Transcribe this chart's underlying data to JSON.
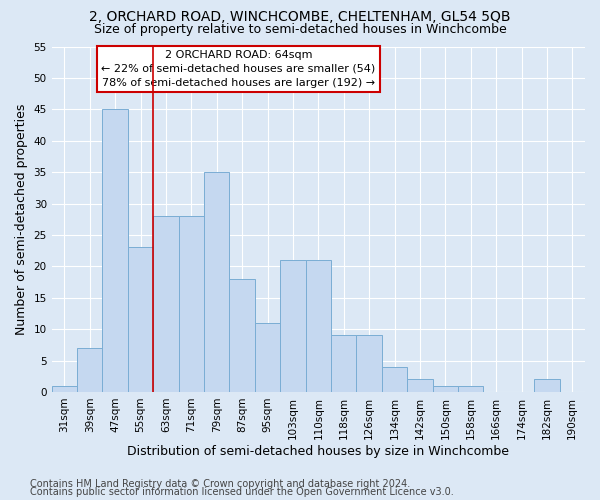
{
  "title": "2, ORCHARD ROAD, WINCHCOMBE, CHELTENHAM, GL54 5QB",
  "subtitle": "Size of property relative to semi-detached houses in Winchcombe",
  "xlabel": "Distribution of semi-detached houses by size in Winchcombe",
  "ylabel": "Number of semi-detached properties",
  "footnote1": "Contains HM Land Registry data © Crown copyright and database right 2024.",
  "footnote2": "Contains public sector information licensed under the Open Government Licence v3.0.",
  "categories": [
    "31sqm",
    "39sqm",
    "47sqm",
    "55sqm",
    "63sqm",
    "71sqm",
    "79sqm",
    "87sqm",
    "95sqm",
    "103sqm",
    "110sqm",
    "118sqm",
    "126sqm",
    "134sqm",
    "142sqm",
    "150sqm",
    "158sqm",
    "166sqm",
    "174sqm",
    "182sqm",
    "190sqm"
  ],
  "values": [
    1,
    7,
    45,
    23,
    28,
    28,
    35,
    18,
    11,
    21,
    21,
    9,
    9,
    4,
    2,
    1,
    1,
    0,
    0,
    2,
    0
  ],
  "bar_color": "#c5d8f0",
  "bar_edgecolor": "#7aadd4",
  "annotation_title": "2 ORCHARD ROAD: 64sqm",
  "annotation_line1": "← 22% of semi-detached houses are smaller (54)",
  "annotation_line2": "78% of semi-detached houses are larger (192) →",
  "annotation_box_color": "#ffffff",
  "annotation_box_edgecolor": "#cc0000",
  "red_line_x": 3.5,
  "ylim": [
    0,
    55
  ],
  "yticks": [
    0,
    5,
    10,
    15,
    20,
    25,
    30,
    35,
    40,
    45,
    50,
    55
  ],
  "background_color": "#dce8f5",
  "grid_color": "#ffffff",
  "title_fontsize": 10,
  "subtitle_fontsize": 9,
  "axis_label_fontsize": 9,
  "tick_fontsize": 7.5,
  "annotation_fontsize": 8,
  "footnote_fontsize": 7
}
